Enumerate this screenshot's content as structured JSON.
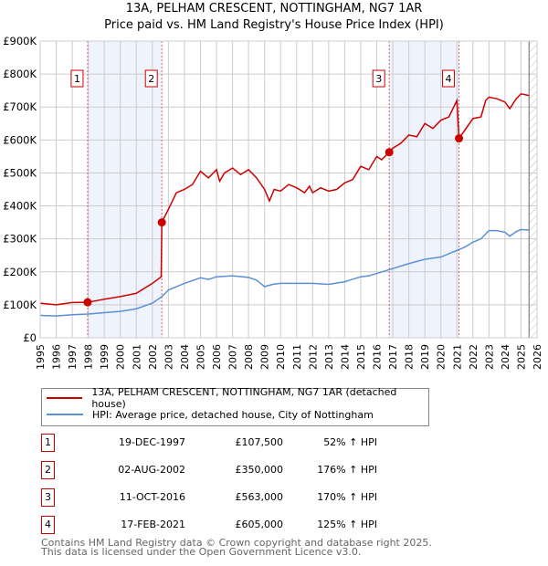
{
  "chart_data": {
    "type": "line",
    "title": "13A, PELHAM CRESCENT, NOTTINGHAM, NG7 1AR",
    "subtitle": "Price paid vs. HM Land Registry's House Price Index (HPI)",
    "xlim": [
      1995,
      2026
    ],
    "ylim": [
      0,
      900000
    ],
    "x_ticks": [
      "1995",
      "1996",
      "1997",
      "1998",
      "1999",
      "2000",
      "2001",
      "2002",
      "2003",
      "2004",
      "2005",
      "2006",
      "2007",
      "2008",
      "2009",
      "2010",
      "2011",
      "2012",
      "2013",
      "2014",
      "2015",
      "2016",
      "2017",
      "2018",
      "2019",
      "2020",
      "2021",
      "2022",
      "2023",
      "2024",
      "2025",
      "2026"
    ],
    "y_ticks": [
      {
        "v": 0,
        "label": "£0"
      },
      {
        "v": 100000,
        "label": "£100K"
      },
      {
        "v": 200000,
        "label": "£200K"
      },
      {
        "v": 300000,
        "label": "£300K"
      },
      {
        "v": 400000,
        "label": "£400K"
      },
      {
        "v": 500000,
        "label": "£500K"
      },
      {
        "v": 600000,
        "label": "£600K"
      },
      {
        "v": 700000,
        "label": "£700K"
      },
      {
        "v": 800000,
        "label": "£800K"
      },
      {
        "v": 900000,
        "label": "£900K"
      }
    ],
    "grid": true,
    "shaded_ranges": [
      [
        1997.96,
        2002.59
      ],
      [
        2016.78,
        2021.13
      ]
    ],
    "hatched_from": 2025.5,
    "series": [
      {
        "name": "13A, PELHAM CRESCENT, NOTTINGHAM, NG7 1AR (detached house)",
        "color": "#cc0000",
        "x": [
          1995,
          1996,
          1997,
          1997.96,
          1999,
          2000,
          2001,
          2002,
          2002.55,
          2002.59,
          2003,
          2003.5,
          2004,
          2004.5,
          2005,
          2005.5,
          2006,
          2006.2,
          2006.5,
          2007,
          2007.5,
          2008,
          2008.5,
          2009,
          2009.3,
          2009.6,
          2010,
          2010.5,
          2011,
          2011.5,
          2011.8,
          2012,
          2012.5,
          2013,
          2013.5,
          2014,
          2014.5,
          2015,
          2015.5,
          2016,
          2016.3,
          2016.78,
          2017,
          2017.5,
          2018,
          2018.5,
          2019,
          2019.5,
          2020,
          2020.5,
          2021.0,
          2021.13,
          2021.5,
          2022,
          2022.5,
          2022.8,
          2023,
          2023.5,
          2024,
          2024.3,
          2024.7,
          2025,
          2025.5
        ],
        "y": [
          105000,
          100000,
          107000,
          107500,
          117000,
          125000,
          135000,
          165000,
          185000,
          350000,
          390000,
          440000,
          450000,
          465000,
          505000,
          485000,
          510000,
          475000,
          500000,
          515000,
          495000,
          510000,
          485000,
          450000,
          415000,
          450000,
          445000,
          465000,
          455000,
          440000,
          460000,
          440000,
          455000,
          445000,
          450000,
          470000,
          480000,
          520000,
          510000,
          550000,
          540000,
          563000,
          575000,
          590000,
          615000,
          610000,
          650000,
          635000,
          660000,
          670000,
          720000,
          605000,
          630000,
          665000,
          670000,
          720000,
          730000,
          725000,
          715000,
          695000,
          725000,
          740000,
          735000
        ]
      },
      {
        "name": "HPI: Average price, detached house, City of Nottingham",
        "color": "#5b8fd6",
        "x": [
          1995,
          1996,
          1997,
          1998,
          1999,
          2000,
          2001,
          2002,
          2002.6,
          2003,
          2004,
          2005,
          2005.5,
          2006,
          2007,
          2008,
          2008.5,
          2009,
          2009.5,
          2010,
          2011,
          2012,
          2013,
          2014,
          2015,
          2015.5,
          2016,
          2017,
          2018,
          2019,
          2020,
          2021,
          2021.5,
          2022,
          2022.5,
          2023,
          2023.5,
          2024,
          2024.3,
          2024.7,
          2025,
          2025.5
        ],
        "y": [
          68000,
          66000,
          70000,
          72000,
          76000,
          80000,
          88000,
          105000,
          125000,
          145000,
          165000,
          182000,
          177000,
          185000,
          188000,
          183000,
          175000,
          155000,
          162000,
          165000,
          165000,
          165000,
          162000,
          170000,
          185000,
          188000,
          195000,
          210000,
          225000,
          238000,
          245000,
          265000,
          275000,
          290000,
          300000,
          325000,
          325000,
          320000,
          308000,
          322000,
          328000,
          327000
        ]
      }
    ],
    "sales": [
      {
        "n": "1",
        "x": 1997.96,
        "y": 107500,
        "date": "19-DEC-1997",
        "price": "£107,500",
        "hpi": "52% ↑ HPI"
      },
      {
        "n": "2",
        "x": 2002.59,
        "y": 350000,
        "date": "02-AUG-2002",
        "price": "£350,000",
        "hpi": "176% ↑ HPI"
      },
      {
        "n": "3",
        "x": 2016.78,
        "y": 563000,
        "date": "11-OCT-2016",
        "price": "£563,000",
        "hpi": "170% ↑ HPI"
      },
      {
        "n": "4",
        "x": 2021.13,
        "y": 605000,
        "date": "17-FEB-2021",
        "price": "£605,000",
        "hpi": "125% ↑ HPI"
      }
    ]
  },
  "footer": {
    "line1": "Contains HM Land Registry data © Crown copyright and database right 2025.",
    "line2": "This data is licensed under the Open Government Licence v3.0."
  }
}
